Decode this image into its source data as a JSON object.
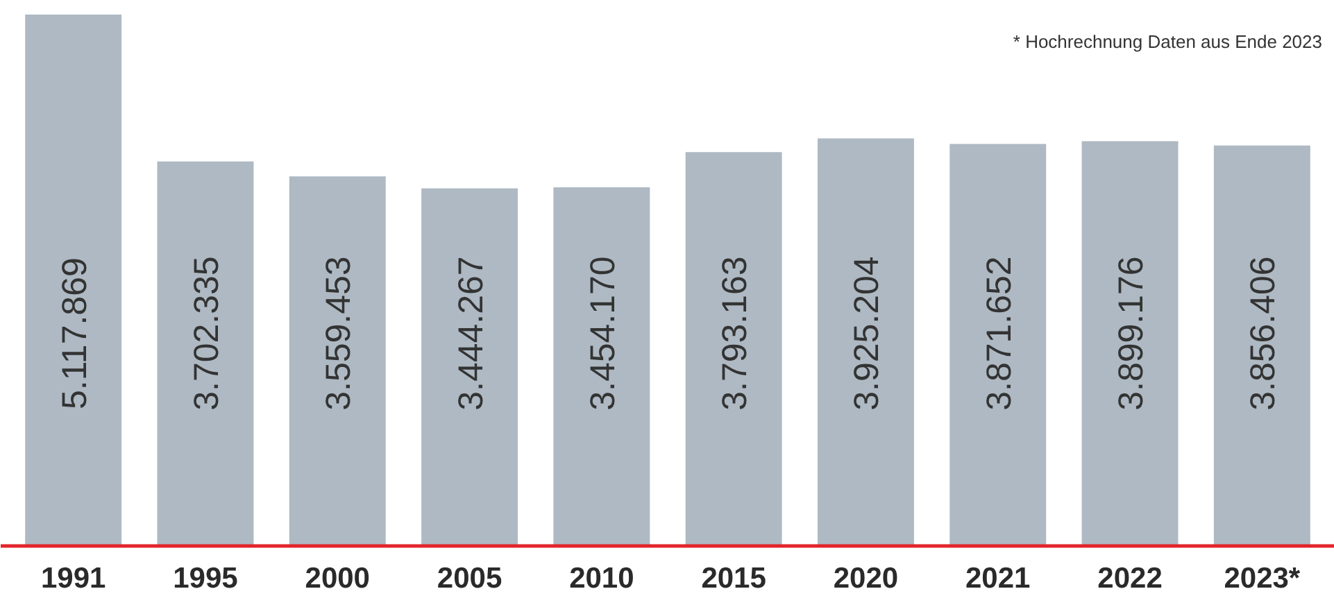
{
  "chart_data": {
    "type": "bar",
    "categories": [
      "1991",
      "1995",
      "2000",
      "2005",
      "2010",
      "2015",
      "2020",
      "2021",
      "2022",
      "2023*"
    ],
    "values": [
      5117869,
      3702335,
      3559453,
      3444267,
      3454170,
      3793163,
      3925204,
      3871652,
      3899176,
      3856406
    ],
    "value_labels": [
      "5.117.869",
      "3.702.335",
      "3.559.453",
      "3.444.267",
      "3.454.170",
      "3.793.163",
      "3.925.204",
      "3.871.652",
      "3.899.176",
      "3.856.406"
    ],
    "color": "#aeb9c3",
    "grid": false,
    "annotations": [
      "* Hochrechnung Daten aus Ende 2023"
    ]
  }
}
